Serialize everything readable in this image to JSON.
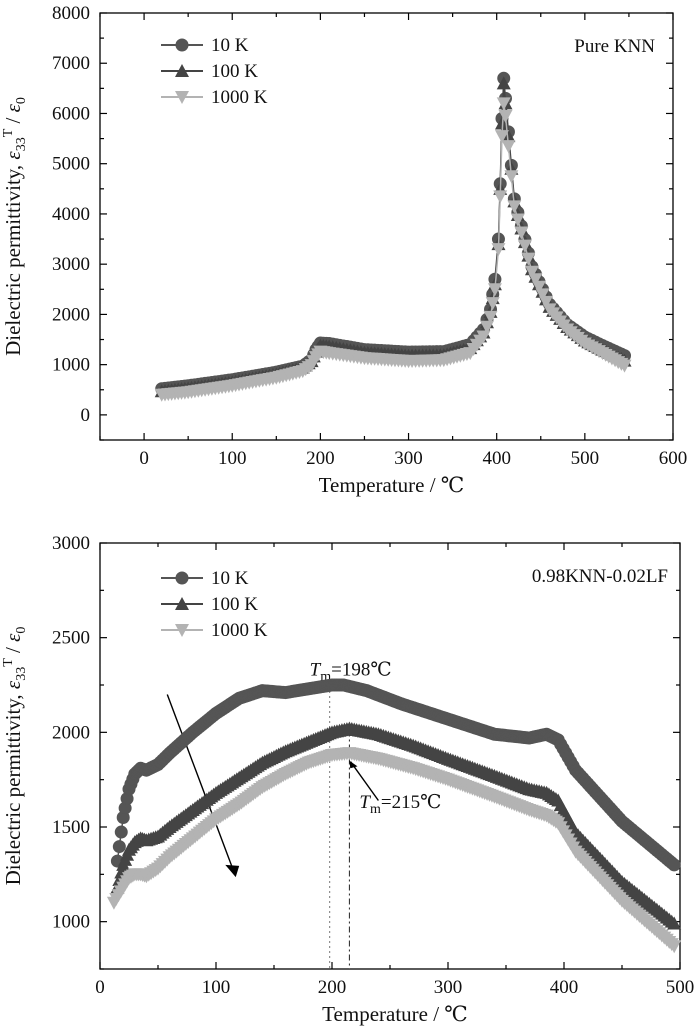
{
  "chart_data": [
    {
      "type": "line",
      "title": "Pure KNN",
      "xlabel": "Temperature / ℃",
      "ylabel": "Dielectric permittivity, ε33T / ε0",
      "xlim": [
        -50,
        600
      ],
      "ylim": [
        -500,
        8000
      ],
      "xticks": [
        0,
        100,
        200,
        300,
        400,
        500,
        600
      ],
      "yticks": [
        0,
        1000,
        2000,
        3000,
        4000,
        5000,
        6000,
        7000,
        8000
      ],
      "legend_position": "top-left",
      "grid": false,
      "series": [
        {
          "name": "10 K",
          "color": "#555555",
          "marker": "circle",
          "x": [
            20,
            50,
            100,
            150,
            180,
            190,
            195,
            200,
            210,
            250,
            300,
            340,
            370,
            385,
            393,
            398,
            402,
            404,
            406,
            408,
            410,
            420,
            440,
            460,
            480,
            500,
            520,
            545
          ],
          "y": [
            520,
            580,
            700,
            850,
            970,
            1100,
            1300,
            1430,
            1420,
            1300,
            1250,
            1260,
            1400,
            1700,
            2100,
            2700,
            3500,
            4600,
            5900,
            6700,
            6300,
            4300,
            2950,
            2200,
            1800,
            1550,
            1380,
            1180
          ]
        },
        {
          "name": "100 K",
          "color": "#444444",
          "marker": "triangle-up",
          "x": [
            20,
            50,
            100,
            150,
            180,
            190,
            195,
            200,
            210,
            250,
            300,
            340,
            370,
            385,
            393,
            398,
            402,
            404,
            406,
            408,
            410,
            420,
            440,
            460,
            480,
            500,
            520,
            545
          ],
          "y": [
            470,
            530,
            650,
            810,
            940,
            1070,
            1260,
            1380,
            1360,
            1240,
            1180,
            1190,
            1330,
            1640,
            2050,
            2600,
            3400,
            4500,
            5800,
            6600,
            6200,
            4250,
            2900,
            2150,
            1750,
            1480,
            1300,
            1080
          ]
        },
        {
          "name": "1000 K",
          "color": "#b3b3b3",
          "marker": "triangle-down",
          "x": [
            20,
            50,
            100,
            150,
            180,
            190,
            195,
            200,
            210,
            250,
            300,
            340,
            370,
            385,
            393,
            398,
            402,
            404,
            406,
            408,
            410,
            420,
            440,
            460,
            480,
            500,
            520,
            545
          ],
          "y": [
            400,
            450,
            580,
            740,
            870,
            990,
            1150,
            1260,
            1230,
            1130,
            1070,
            1090,
            1230,
            1560,
            1950,
            2500,
            3300,
            4350,
            5550,
            6200,
            5950,
            4150,
            2850,
            2100,
            1700,
            1420,
            1230,
            980
          ]
        }
      ]
    },
    {
      "type": "line",
      "title": "0.98KNN-0.02LF",
      "xlabel": "Temperature / ℃",
      "ylabel": "Dielectric permittivity, ε33T / ε0",
      "xlim": [
        0,
        500
      ],
      "ylim": [
        750,
        3000
      ],
      "xticks": [
        0,
        100,
        200,
        300,
        400,
        500
      ],
      "yticks": [
        1000,
        1500,
        2000,
        2500,
        3000
      ],
      "legend_position": "top-left",
      "grid": false,
      "annotations": [
        {
          "label": "Tm=198℃",
          "x": 198
        },
        {
          "label": "Tm=215℃",
          "x": 215
        }
      ],
      "series": [
        {
          "name": "10 K",
          "color": "#555555",
          "marker": "circle",
          "x": [
            15,
            20,
            25,
            30,
            35,
            40,
            50,
            60,
            80,
            100,
            120,
            140,
            160,
            180,
            200,
            210,
            230,
            260,
            300,
            340,
            370,
            385,
            395,
            410,
            450,
            495
          ],
          "y": [
            1320,
            1550,
            1700,
            1780,
            1810,
            1800,
            1830,
            1890,
            2000,
            2100,
            2180,
            2220,
            2210,
            2230,
            2250,
            2250,
            2220,
            2150,
            2070,
            1990,
            1970,
            1990,
            1960,
            1800,
            1530,
            1300
          ]
        },
        {
          "name": "100 K",
          "color": "#444444",
          "marker": "triangle-up",
          "x": [
            15,
            20,
            25,
            30,
            35,
            40,
            50,
            60,
            80,
            100,
            120,
            140,
            160,
            180,
            200,
            215,
            240,
            270,
            300,
            340,
            370,
            385,
            395,
            410,
            450,
            495
          ],
          "y": [
            1180,
            1300,
            1380,
            1420,
            1440,
            1430,
            1450,
            1500,
            1590,
            1680,
            1760,
            1840,
            1900,
            1950,
            2000,
            2020,
            1990,
            1930,
            1860,
            1770,
            1700,
            1680,
            1640,
            1470,
            1210,
            990
          ]
        },
        {
          "name": "1000 K",
          "color": "#b3b3b3",
          "marker": "triangle-down",
          "x": [
            12,
            20,
            25,
            30,
            35,
            40,
            50,
            60,
            80,
            100,
            120,
            140,
            160,
            180,
            200,
            215,
            240,
            270,
            300,
            340,
            370,
            385,
            395,
            410,
            450,
            495
          ],
          "y": [
            1100,
            1180,
            1230,
            1250,
            1250,
            1240,
            1280,
            1340,
            1440,
            1540,
            1620,
            1710,
            1780,
            1840,
            1880,
            1890,
            1860,
            1810,
            1750,
            1660,
            1590,
            1560,
            1520,
            1370,
            1110,
            870
          ]
        }
      ]
    }
  ]
}
